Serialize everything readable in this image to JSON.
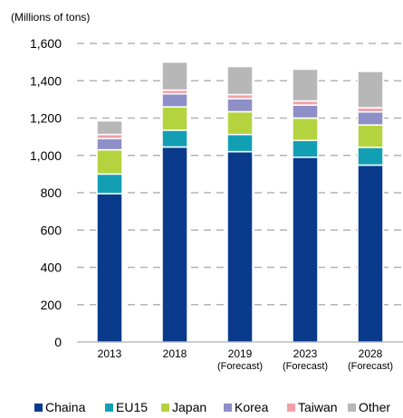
{
  "chart_data": {
    "type": "bar",
    "stacked": true,
    "unit_label": "(Millions of tons)",
    "categories": [
      "2013",
      "2018",
      "2019",
      "2023",
      "2028"
    ],
    "category_sublabels": [
      "",
      "",
      "(Forecast)",
      "(Forecast)",
      "(Forecast)"
    ],
    "ylim": [
      0,
      1600
    ],
    "yticks": [
      0,
      200,
      400,
      600,
      800,
      1000,
      1200,
      1400,
      1600
    ],
    "ytick_labels": [
      "0",
      "200",
      "400",
      "600",
      "800",
      "1,000",
      "1,200",
      "1,400",
      "1,600"
    ],
    "grid": "horizontal dashed",
    "legend_position": "bottom",
    "series": [
      {
        "name": "Chaina",
        "color": "#0a3a8c",
        "values": [
          795,
          1045,
          1020,
          990,
          948
        ]
      },
      {
        "name": "EU15",
        "color": "#139fb3",
        "values": [
          105,
          90,
          92,
          90,
          95
        ]
      },
      {
        "name": "Japan",
        "color": "#b5d33f",
        "values": [
          130,
          125,
          122,
          120,
          120
        ]
      },
      {
        "name": "Korea",
        "color": "#8f8fc8",
        "values": [
          60,
          70,
          70,
          70,
          70
        ]
      },
      {
        "name": "Taiwan",
        "color": "#f2a0a8",
        "values": [
          22,
          20,
          22,
          22,
          22
        ]
      },
      {
        "name": "Other",
        "color": "#b7b7b7",
        "values": [
          73,
          150,
          150,
          170,
          195
        ]
      }
    ]
  }
}
